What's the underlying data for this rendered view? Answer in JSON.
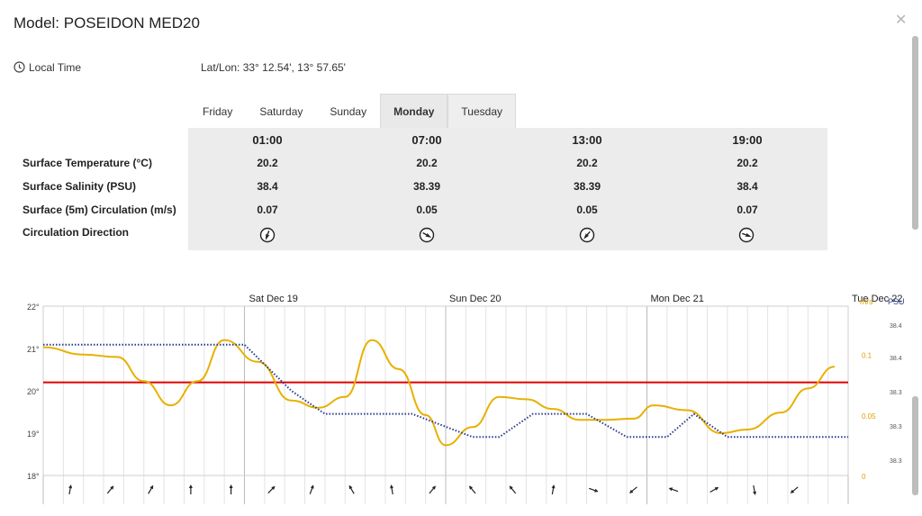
{
  "header": {
    "title": "Model: POSEIDON MED20",
    "local_time": "Local Time",
    "latlon": "Lat/Lon: 33° 12.54', 13° 57.65'"
  },
  "tabs": [
    {
      "label": "Friday"
    },
    {
      "label": "Saturday"
    },
    {
      "label": "Sunday"
    },
    {
      "label": "Monday"
    },
    {
      "label": "Tuesday"
    }
  ],
  "active_tab": "Monday",
  "forecast": {
    "times": [
      "01:00",
      "07:00",
      "13:00",
      "19:00"
    ],
    "rows": [
      {
        "label": "Surface Temperature (°C)",
        "values": [
          "20.2",
          "20.2",
          "20.2",
          "20.2"
        ]
      },
      {
        "label": "Surface Salinity (PSU)",
        "values": [
          "38.4",
          "38.39",
          "38.39",
          "38.4"
        ]
      },
      {
        "label": "Surface (5m) Circulation (m/s)",
        "values": [
          "0.07",
          "0.05",
          "0.05",
          "0.07"
        ]
      },
      {
        "label": "Circulation Direction",
        "directions_deg": [
          200,
          120,
          220,
          110
        ]
      }
    ]
  },
  "chart_data": {
    "type": "line",
    "day_labels": [
      "Sat Dec 19",
      "Sun Dec 20",
      "Mon Dec 21",
      "Tue Dec 22"
    ],
    "y_left": {
      "ticks": [
        "22°",
        "21°",
        "20°",
        "19°",
        "18°"
      ],
      "range": [
        18,
        22
      ]
    },
    "y_speed": {
      "unit": "m/s",
      "ticks": [
        "0.1",
        "0.05",
        "0"
      ],
      "range": [
        0,
        0.14
      ]
    },
    "y_salinity": {
      "unit": "PSU",
      "ticks": [
        "38.4",
        "38.4",
        "38.3",
        "38.3",
        "38.3"
      ]
    },
    "series": [
      {
        "name": "Temperature",
        "color": "#e00000",
        "style": "solid",
        "x": [
          0,
          120
        ],
        "y": [
          20.2,
          20.2
        ]
      },
      {
        "name": "Circulation",
        "color": "#e8b000",
        "style": "solid",
        "x": [
          0,
          6,
          11,
          15,
          19,
          23,
          27,
          32,
          37,
          41,
          45,
          49,
          53,
          57,
          60,
          64,
          68,
          72,
          76,
          80,
          84,
          88,
          91,
          96,
          101,
          105,
          110,
          114,
          118
        ],
        "y": [
          0.106,
          0.1,
          0.098,
          0.078,
          0.058,
          0.078,
          0.112,
          0.094,
          0.062,
          0.056,
          0.065,
          0.112,
          0.088,
          0.05,
          0.025,
          0.04,
          0.065,
          0.063,
          0.055,
          0.046,
          0.046,
          0.047,
          0.058,
          0.054,
          0.035,
          0.038,
          0.052,
          0.072,
          0.09
        ]
      },
      {
        "name": "Salinity",
        "color": "#2a3b8f",
        "style": "dotted",
        "x": [
          0,
          10,
          30,
          37,
          42,
          47,
          55,
          64,
          68,
          73,
          81,
          87,
          93,
          97,
          102,
          112,
          120
        ],
        "y": [
          38.42,
          38.42,
          38.42,
          38.36,
          38.33,
          38.33,
          38.33,
          38.3,
          38.3,
          38.33,
          38.33,
          38.3,
          38.3,
          38.33,
          38.3,
          38.3,
          38.3
        ]
      }
    ],
    "wind_arrows_deg": [
      10,
      40,
      30,
      0,
      0,
      45,
      20,
      330,
      350,
      40,
      320,
      320,
      10,
      110,
      230,
      290,
      60,
      170,
      230
    ],
    "grid": true
  }
}
